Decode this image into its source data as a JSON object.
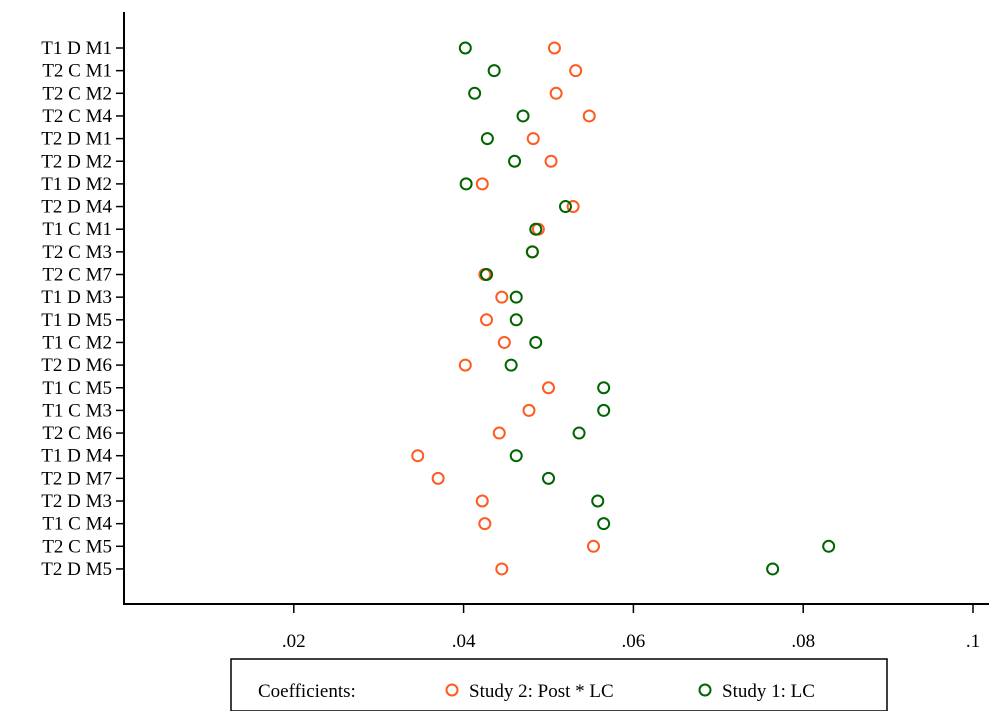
{
  "chart_data": {
    "type": "scatter",
    "title": "",
    "xlabel": "",
    "ylabel": "",
    "xlim": [
      0,
      0.1
    ],
    "x_ticks": [
      0.02,
      0.04,
      0.06,
      0.08,
      0.1
    ],
    "x_tick_labels": [
      ".02",
      ".04",
      ".06",
      ".08",
      ".1"
    ],
    "grid": false,
    "legend_position": "bottom",
    "categories": [
      "T1 D M1",
      "T2 C M1",
      "T2 C M2",
      "T2 C M4",
      "T2 D M1",
      "T2 D M2",
      "T1 D M2",
      "T2 D M4",
      "T1 C M1",
      "T2 C M3",
      "T2 C M7",
      "T1 D M3",
      "T1 D M5",
      "T1 C M2",
      "T2 D M6",
      "T1 C M5",
      "T1 C M3",
      "T2 C M6",
      "T1 D M4",
      "T2 D M7",
      "T2 D M3",
      "T1 C M4",
      "T2 C M5",
      "T2 D M5"
    ],
    "series": [
      {
        "name": "Study 2: Post * LC",
        "color": "#ff5a1f",
        "values": [
          0.0507,
          0.0532,
          0.0509,
          0.0548,
          0.0482,
          0.0503,
          0.0422,
          0.0529,
          0.0488,
          0.0481,
          0.0425,
          0.0445,
          0.0427,
          0.0448,
          0.0402,
          0.05,
          0.0477,
          0.0442,
          0.0346,
          0.037,
          0.0422,
          0.0425,
          0.0553,
          0.0445
        ]
      },
      {
        "name": "Study 1: LC",
        "color": "#006400",
        "values": [
          0.0402,
          0.0436,
          0.0413,
          0.047,
          0.0428,
          0.046,
          0.0403,
          0.052,
          0.0485,
          0.0481,
          0.0427,
          0.0462,
          0.0462,
          0.0485,
          0.0456,
          0.0565,
          0.0565,
          0.0536,
          0.0462,
          0.05,
          0.0558,
          0.0565,
          0.083,
          0.0764
        ]
      }
    ]
  },
  "legend": {
    "prefix": "Coefficients:",
    "items": [
      "Study 2: Post * LC",
      "Study 1: LC"
    ]
  }
}
